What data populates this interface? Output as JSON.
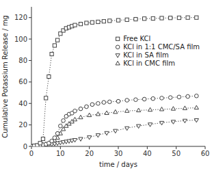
{
  "chart_data": {
    "type": "line",
    "xlabel": "time / days",
    "ylabel": "Cumulative Potassium Release / mg",
    "xlim": [
      0,
      60
    ],
    "ylim": [
      0,
      130
    ],
    "xticks": [
      0,
      10,
      20,
      30,
      40,
      50,
      60
    ],
    "yticks": [
      0,
      20,
      40,
      60,
      80,
      100,
      120
    ],
    "color": "#404040",
    "line_style": "dotted",
    "legend": "right",
    "series": [
      {
        "name": "Free KCl",
        "marker": "square",
        "x": [
          0,
          1,
          2,
          3,
          4,
          5,
          6,
          7,
          8,
          9,
          10,
          11,
          12,
          13,
          14,
          15,
          17,
          19,
          21,
          23,
          25,
          27,
          30,
          33,
          36,
          39,
          42,
          45,
          48,
          51,
          54,
          57
        ],
        "values": [
          0,
          0.5,
          1,
          3,
          7,
          45,
          65,
          86,
          94,
          99,
          105,
          108,
          110,
          111,
          112,
          113,
          114,
          115,
          115.5,
          116,
          116.5,
          117,
          117.5,
          118,
          118.5,
          119,
          119.2,
          119.5,
          119.7,
          119.8,
          120,
          120
        ]
      },
      {
        "name": "KCl in 1:1 CMC/SA film",
        "marker": "circle",
        "x": [
          0,
          1,
          2,
          3,
          4,
          5,
          6,
          7,
          8,
          9,
          10,
          11,
          12,
          13,
          14,
          15,
          17,
          19,
          21,
          23,
          25,
          27,
          30,
          33,
          36,
          39,
          42,
          45,
          48,
          51,
          54,
          57
        ],
        "values": [
          0,
          0.3,
          0.5,
          1,
          1.5,
          2,
          3,
          5,
          8,
          12,
          19,
          24,
          28,
          30,
          31,
          33,
          35,
          37,
          39,
          40,
          41,
          41.5,
          42,
          43,
          43.5,
          44,
          44.5,
          45,
          45.5,
          46,
          46.5,
          47
        ]
      },
      {
        "name": "KCl in SA film",
        "marker": "triangle-down",
        "x": [
          0,
          1,
          2,
          3,
          4,
          5,
          6,
          7,
          8,
          9,
          10,
          11,
          12,
          13,
          14,
          15,
          17,
          20,
          23,
          26,
          29,
          33,
          37,
          41,
          45,
          49,
          53,
          57
        ],
        "values": [
          0,
          0.2,
          0.3,
          0.5,
          0.8,
          1.0,
          1.5,
          2,
          2.5,
          3,
          3.5,
          4,
          4.5,
          5,
          5.5,
          6,
          7,
          8.5,
          10.5,
          12.5,
          14.5,
          17,
          19,
          20.5,
          22,
          23,
          24,
          24.5
        ]
      },
      {
        "name": "KCl in CMC film",
        "marker": "triangle-up",
        "x": [
          0,
          1,
          2,
          3,
          4,
          5,
          6,
          7,
          8,
          9,
          10,
          11,
          12,
          13,
          14,
          15,
          17,
          20,
          23,
          26,
          29,
          33,
          37,
          41,
          45,
          49,
          53,
          57
        ],
        "values": [
          0,
          0.3,
          0.5,
          1,
          1.5,
          2,
          3,
          4,
          5.5,
          8,
          12,
          16,
          19,
          21,
          23,
          25,
          27,
          29,
          30,
          31,
          32,
          33,
          33.5,
          34,
          34.5,
          35,
          35.5,
          36
        ]
      }
    ]
  }
}
